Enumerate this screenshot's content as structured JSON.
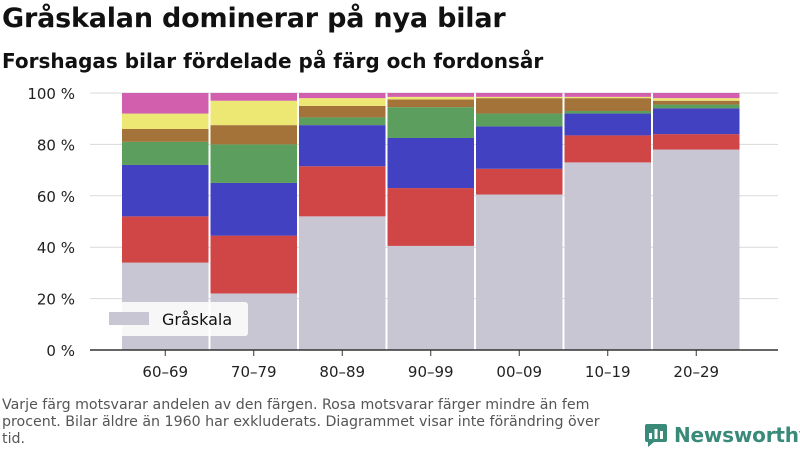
{
  "title": "Gråskalan dominerar på nya bilar",
  "subtitle": "Forshagas bilar fördelade på färg och fordonsår",
  "footnote": "Varje färg motsvarar andelen av den färgen. Rosa motsvarar färger mindre än fem procent. Bilar äldre än 1960 har exkluderats. Diagrammet visar inte förändring över tid.",
  "brand": {
    "name": "Newsworthy",
    "icon": "newsworthy-logo-icon",
    "color": "#3a8a79"
  },
  "chart_data": {
    "type": "bar",
    "stacked": true,
    "categories": [
      "60–69",
      "70–79",
      "80–89",
      "90–99",
      "00–09",
      "10–19",
      "20–29"
    ],
    "ylim": [
      0,
      100
    ],
    "yticks": [
      0,
      20,
      40,
      60,
      80,
      100
    ],
    "ytick_labels": [
      "0 %",
      "20 %",
      "40 %",
      "60 %",
      "80 %",
      "100 %"
    ],
    "grid": true,
    "legend": {
      "position": "bottom-left",
      "entries": [
        "Gråskala"
      ]
    },
    "series": [
      {
        "name": "Gråskala",
        "color": "#c7c6d2",
        "values": [
          34,
          22,
          52,
          40.5,
          60.5,
          73,
          78
        ]
      },
      {
        "color": "#d04646",
        "values": [
          18,
          22.5,
          19.5,
          22.5,
          10,
          10.5,
          6
        ]
      },
      {
        "color": "#4141c2",
        "values": [
          20,
          20.5,
          16,
          19.5,
          16.5,
          8.5,
          10
        ]
      },
      {
        "color": "#5b9e5e",
        "values": [
          9,
          15,
          3,
          12,
          5,
          1,
          1.5
        ]
      },
      {
        "color": "#a3733a",
        "values": [
          5,
          7.5,
          4.5,
          3,
          6,
          5,
          1.5
        ]
      },
      {
        "color": "#ede873",
        "values": [
          6,
          9.5,
          3,
          1,
          0.5,
          0.5,
          1
        ]
      },
      {
        "color": "#d25fae",
        "values": [
          8,
          3,
          2,
          1.5,
          1.5,
          1.5,
          2
        ]
      }
    ]
  }
}
